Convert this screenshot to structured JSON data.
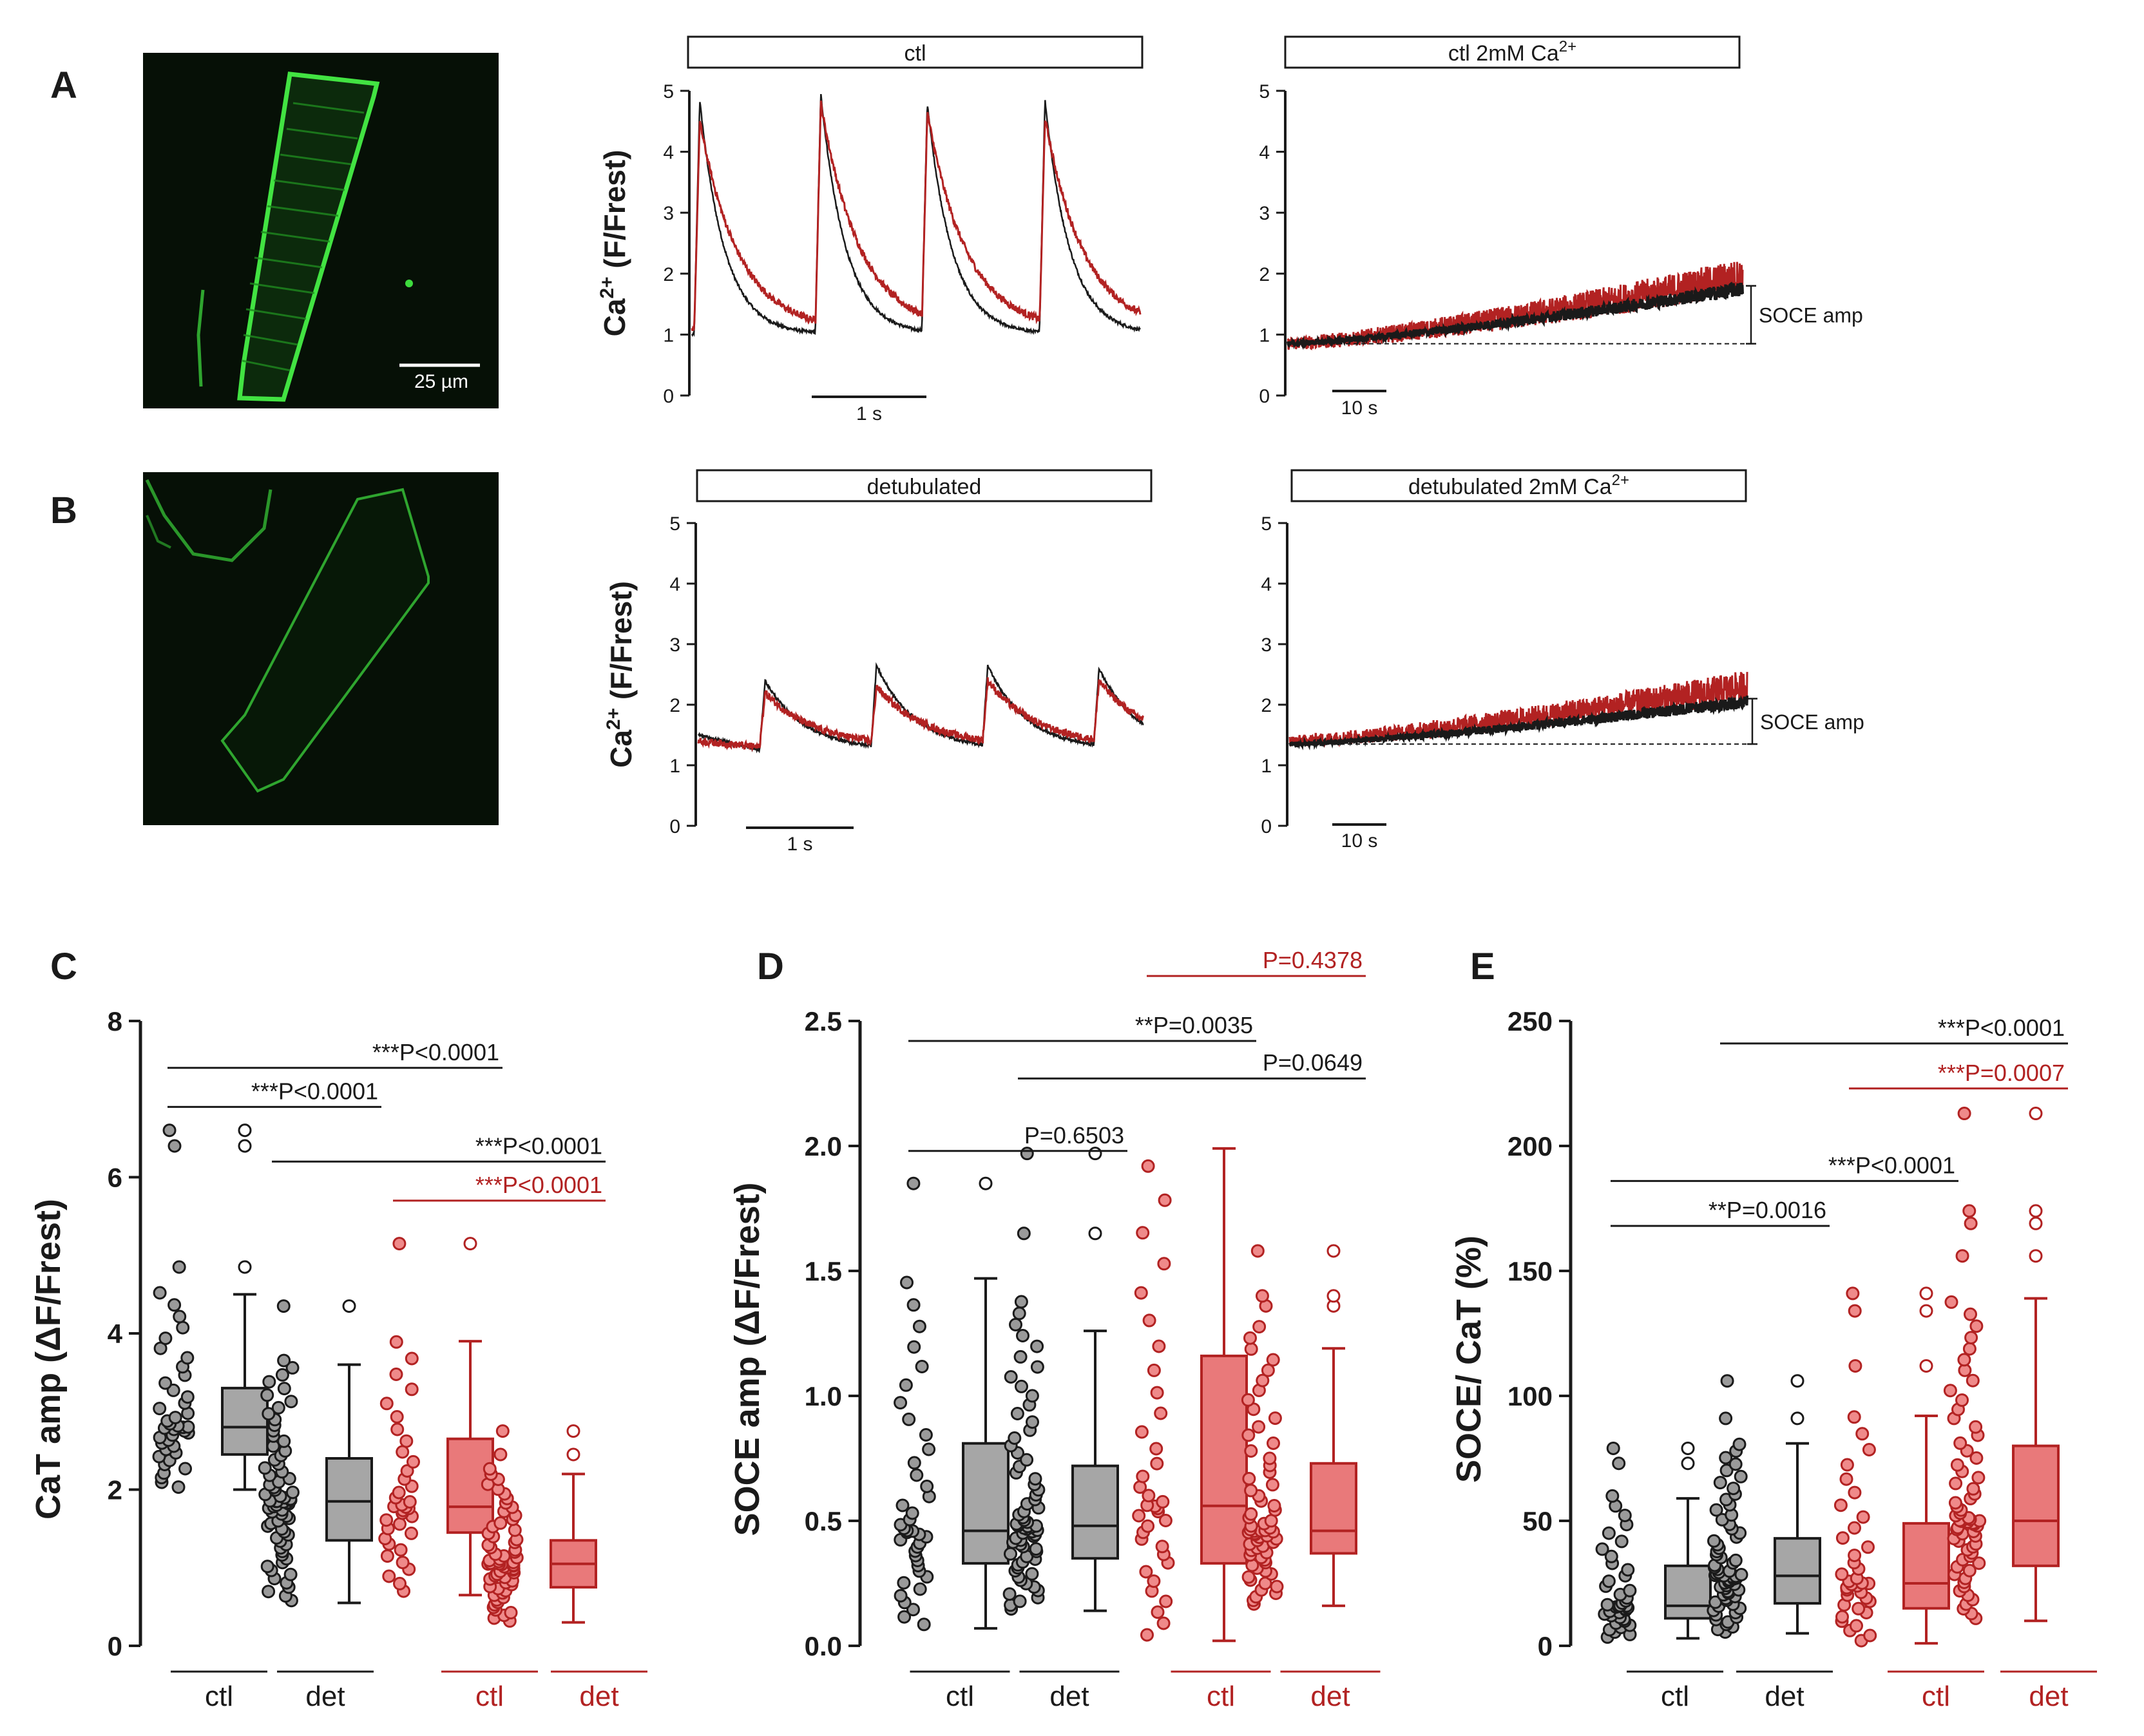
{
  "colors": {
    "black": "#1a1a1a",
    "red": "#b22222",
    "grey_box": "#a6a6a6",
    "red_box": "#e9797a",
    "micro_bg": "#061006",
    "micro_green": "#3ddc3d",
    "dot_black": "#9a9a9a",
    "dot_red": "#ef8a8a"
  },
  "panels": {
    "A": {
      "letter": "A",
      "scale_bar": "25 µm",
      "image_icon": "green-membrane-micrograph-icon"
    },
    "B": {
      "letter": "B",
      "image_icon": "green-detubulated-micrograph-icon"
    },
    "C": {
      "letter": "C"
    },
    "D": {
      "letter": "D"
    },
    "E": {
      "letter": "E"
    }
  },
  "chart_data": [
    {
      "id": "A_ctl",
      "type": "line",
      "title": "ctl",
      "ylabel_main": "Ca",
      "ylabel_sup": "2+",
      "ylabel_rest": " (F/Frest)",
      "ylim": [
        0,
        5
      ],
      "yticks": [
        "0",
        "1",
        "2",
        "3",
        "4",
        "5"
      ],
      "time_scale": "1 s",
      "series": [
        {
          "name": "ctl",
          "color": "black",
          "baseline": 1.0,
          "peaks": [
            4.85,
            4.95,
            4.8,
            4.85
          ],
          "transient_times": [
            0.02,
            1.1,
            2.05,
            3.1
          ],
          "total_time_s": 4.0,
          "decay_tau_s": 0.22
        },
        {
          "name": "ctl red",
          "color": "red",
          "baseline": 1.05,
          "peaks": [
            4.5,
            4.8,
            4.65,
            4.55
          ],
          "transient_times": [
            0.02,
            1.1,
            2.05,
            3.1
          ],
          "total_time_s": 4.0,
          "decay_tau_s": 0.35
        }
      ]
    },
    {
      "id": "A_soce",
      "type": "line",
      "title": "ctl 2mM Ca",
      "title_sup": "2+",
      "ylim": [
        0,
        5
      ],
      "yticks": [
        "0",
        "1",
        "2",
        "3",
        "4",
        "5"
      ],
      "time_scale": "10 s",
      "annotation": "SOCE amp",
      "series": [
        {
          "name": "black",
          "color": "black",
          "start": 0.85,
          "end": 1.75,
          "noise": 0.08
        },
        {
          "name": "red",
          "color": "red",
          "start": 0.85,
          "end": 1.95,
          "noise": 0.2
        }
      ]
    },
    {
      "id": "B_det",
      "type": "line",
      "title": "detubulated",
      "ylabel_main": "Ca",
      "ylabel_sup": "2+",
      "ylabel_rest": " (F/Frest)",
      "ylim": [
        0,
        5
      ],
      "yticks": [
        "0",
        "1",
        "2",
        "3",
        "4",
        "5"
      ],
      "time_scale": "1 s",
      "series": [
        {
          "name": "black",
          "color": "black",
          "baseline": 1.25,
          "peaks": [
            2.4,
            2.65,
            2.65,
            2.6
          ],
          "transient_times": [
            0.55,
            1.55,
            2.55,
            3.55
          ],
          "total_time_s": 4.0,
          "decay_tau_s": 0.35,
          "start_level": 1.5
        },
        {
          "name": "red",
          "color": "red",
          "baseline": 1.3,
          "peaks": [
            2.2,
            2.3,
            2.4,
            2.4
          ],
          "transient_times": [
            0.55,
            1.55,
            2.55,
            3.55
          ],
          "total_time_s": 4.0,
          "decay_tau_s": 0.45,
          "start_level": 1.4
        }
      ]
    },
    {
      "id": "B_soce",
      "type": "line",
      "title": "detubulated 2mM Ca",
      "title_sup": "2+",
      "ylim": [
        0,
        5
      ],
      "yticks": [
        "0",
        "1",
        "2",
        "3",
        "4",
        "5"
      ],
      "time_scale": "10 s",
      "annotation": "SOCE amp",
      "series": [
        {
          "name": "black",
          "color": "black",
          "start": 1.35,
          "end": 2.05,
          "noise": 0.07
        },
        {
          "name": "red",
          "color": "red",
          "start": 1.4,
          "end": 2.3,
          "noise": 0.18
        }
      ]
    },
    {
      "id": "C",
      "type": "box_scatter",
      "ylabel": "CaT amp (ΔF/Frest)",
      "ylim": [
        0,
        8
      ],
      "yticks": [
        "0",
        "2",
        "4",
        "6",
        "8"
      ],
      "group_labels": [
        "ctl",
        "det",
        "ctl",
        "det"
      ],
      "group_colors": [
        "black",
        "black",
        "red",
        "red"
      ],
      "groups": [
        {
          "n": 40,
          "min": 2.0,
          "q1": 2.45,
          "median": 2.8,
          "q3": 3.3,
          "max": 4.5,
          "outliers": [
            4.85,
            6.4,
            6.6
          ],
          "scatter_range": [
            2.0,
            4.6
          ]
        },
        {
          "n": 70,
          "min": 0.55,
          "q1": 1.35,
          "median": 1.85,
          "q3": 2.4,
          "max": 3.6,
          "outliers": [
            4.35
          ],
          "scatter_range": [
            0.55,
            3.7
          ]
        },
        {
          "n": 36,
          "min": 0.65,
          "q1": 1.45,
          "median": 1.78,
          "q3": 2.65,
          "max": 3.9,
          "outliers": [
            5.15
          ],
          "scatter_range": [
            0.65,
            4.0
          ]
        },
        {
          "n": 65,
          "min": 0.3,
          "q1": 0.75,
          "median": 1.05,
          "q3": 1.35,
          "max": 2.2,
          "outliers": [
            2.45,
            2.75
          ],
          "scatter_range": [
            0.3,
            2.3
          ]
        }
      ],
      "comparisons": [
        {
          "label": "***P<0.0001",
          "from": 0,
          "to": 2,
          "y": 7.4,
          "color": "black"
        },
        {
          "label": "***P<0.0001",
          "from": 0,
          "to": 1,
          "y": 6.9,
          "color": "black"
        },
        {
          "label": "***P<0.0001",
          "from": 1,
          "to": 3,
          "y": 6.2,
          "color": "black"
        },
        {
          "label": "***P<0.0001",
          "from": 2,
          "to": 3,
          "y": 5.7,
          "color": "red"
        }
      ]
    },
    {
      "id": "D",
      "type": "box_scatter",
      "ylabel": "SOCE amp (ΔF/Frest)",
      "ylim": [
        0,
        2.5
      ],
      "yticks": [
        "0.0",
        "0.5",
        "1.0",
        "1.5",
        "2.0",
        "2.5"
      ],
      "group_labels": [
        "ctl",
        "det",
        "ctl",
        "det"
      ],
      "group_colors": [
        "black",
        "black",
        "red",
        "red"
      ],
      "groups": [
        {
          "n": 40,
          "min": 0.07,
          "q1": 0.33,
          "median": 0.46,
          "q3": 0.81,
          "max": 1.47,
          "outliers": [
            1.85
          ],
          "scatter_range": [
            0.07,
            1.5
          ]
        },
        {
          "n": 70,
          "min": 0.14,
          "q1": 0.35,
          "median": 0.48,
          "q3": 0.72,
          "max": 1.26,
          "outliers": [
            1.65,
            1.97
          ],
          "scatter_range": [
            0.14,
            1.4
          ]
        },
        {
          "n": 36,
          "min": 0.02,
          "q1": 0.33,
          "median": 0.56,
          "q3": 1.16,
          "max": 1.99,
          "outliers": [],
          "scatter_range": [
            0.02,
            1.99
          ]
        },
        {
          "n": 65,
          "min": 0.16,
          "q1": 0.37,
          "median": 0.46,
          "q3": 0.73,
          "max": 1.19,
          "outliers": [
            1.36,
            1.4,
            1.58
          ],
          "scatter_range": [
            0.16,
            1.3
          ]
        }
      ],
      "comparisons": [
        {
          "label": "P=0.4378",
          "from": 2,
          "to": 3,
          "y": 2.68,
          "color": "red"
        },
        {
          "label": "**P=0.0035",
          "from": 0,
          "to": 2,
          "y": 2.42,
          "color": "black"
        },
        {
          "label": "P=0.0649",
          "from": 1,
          "to": 3,
          "y": 2.27,
          "color": "black"
        },
        {
          "label": "P=0.6503",
          "from": 0,
          "to": 1,
          "y": 1.98,
          "color": "black"
        }
      ]
    },
    {
      "id": "E",
      "type": "box_scatter",
      "ylabel": "SOCE/ CaT (%)",
      "ylim": [
        0,
        250
      ],
      "yticks": [
        "0",
        "50",
        "100",
        "150",
        "200",
        "250"
      ],
      "group_labels": [
        "ctl",
        "det",
        "ctl",
        "det"
      ],
      "group_colors": [
        "black",
        "black",
        "red",
        "red"
      ],
      "groups": [
        {
          "n": 40,
          "min": 3,
          "q1": 11,
          "median": 16,
          "q3": 32,
          "max": 59,
          "outliers": [
            73,
            79
          ],
          "scatter_range": [
            3,
            62
          ]
        },
        {
          "n": 70,
          "min": 5,
          "q1": 17,
          "median": 28,
          "q3": 43,
          "max": 81,
          "outliers": [
            91,
            106
          ],
          "scatter_range": [
            5,
            82
          ]
        },
        {
          "n": 36,
          "min": 1,
          "q1": 15,
          "median": 25,
          "q3": 49,
          "max": 92,
          "outliers": [
            112,
            134,
            141
          ],
          "scatter_range": [
            1,
            95
          ]
        },
        {
          "n": 65,
          "min": 10,
          "q1": 32,
          "median": 50,
          "q3": 80,
          "max": 139,
          "outliers": [
            156,
            169,
            174,
            213
          ],
          "scatter_range": [
            10,
            140
          ]
        }
      ],
      "comparisons": [
        {
          "label": "***P<0.0001",
          "from": 1,
          "to": 3,
          "y": 241,
          "color": "black"
        },
        {
          "label": "***P=0.0007",
          "from": 2,
          "to": 3,
          "y": 223,
          "color": "red"
        },
        {
          "label": "***P<0.0001",
          "from": 0,
          "to": 2,
          "y": 186,
          "color": "black"
        },
        {
          "label": "**P=0.0016",
          "from": 0,
          "to": 1,
          "y": 168,
          "color": "black"
        }
      ]
    }
  ]
}
